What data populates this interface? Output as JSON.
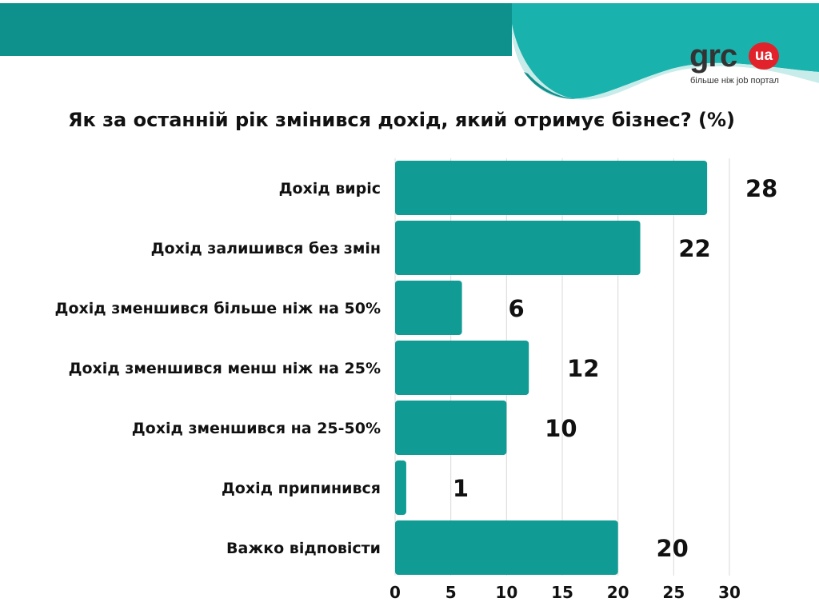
{
  "brand": {
    "logo_text": "grc",
    "logo_badge": "ua",
    "tagline": "більше ніж job портал",
    "colors": {
      "teal": "#0a9a93",
      "teal_light": "#1bb3ae",
      "red": "#e2222a"
    }
  },
  "chart_data": {
    "type": "bar",
    "orientation": "horizontal",
    "title": "Як за останній рік змінився дохід, який отримує бізнес? (%)",
    "categories": [
      "Дохід виріс",
      "Дохід залишився без змін",
      "Дохід зменшився більше ніж на 50%",
      "Дохід зменшився менш ніж на 25%",
      "Дохід зменшився на 25-50%",
      "Дохід припинився",
      "Важко відповісти"
    ],
    "values": [
      28,
      22,
      6,
      12,
      10,
      1,
      20
    ],
    "x_ticks": [
      0,
      5,
      10,
      15,
      20,
      25,
      30
    ],
    "xlim": [
      0,
      30
    ],
    "xlabel": "",
    "ylabel": "",
    "grid": "vertical",
    "bar_color": "#109c94"
  }
}
